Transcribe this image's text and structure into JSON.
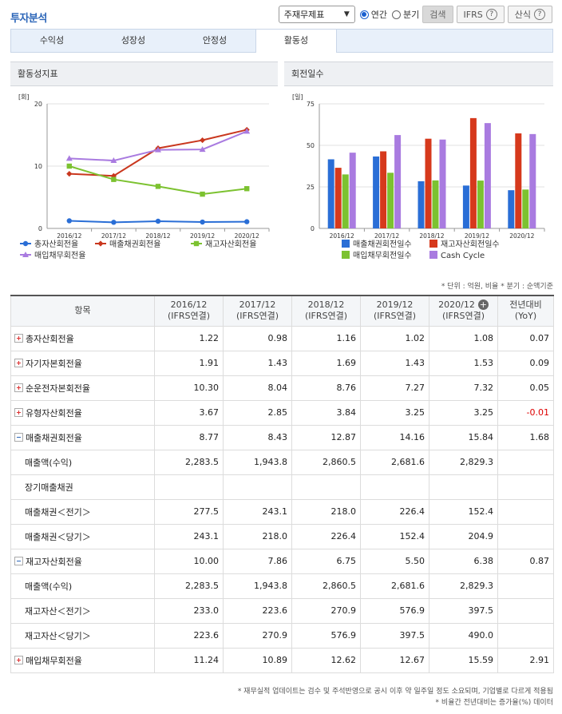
{
  "header": {
    "title": "투자분석",
    "select_value": "주재무제표",
    "radio_annual": "연간",
    "radio_quarter": "분기",
    "search_button": "검색",
    "ifrs_button": "IFRS",
    "formula_button": "산식"
  },
  "tabs": [
    "수익성",
    "성장성",
    "안정성",
    "활동성"
  ],
  "active_tab": 3,
  "chart_left": {
    "panel_title": "활동성지표",
    "chart_data": {
      "type": "line",
      "unit": "[회]",
      "categories": [
        "2016/12",
        "2017/12",
        "2018/12",
        "2019/12",
        "2020/12"
      ],
      "ylim": [
        0,
        20
      ],
      "yticks": [
        0,
        10,
        20
      ],
      "series": [
        {
          "name": "총자산회전율",
          "color": "#2a6ed6",
          "marker": "circle",
          "values": [
            1.22,
            0.98,
            1.16,
            1.02,
            1.08
          ]
        },
        {
          "name": "매출채권회전율",
          "color": "#c9371e",
          "marker": "diamond",
          "values": [
            8.77,
            8.43,
            12.87,
            14.16,
            15.84
          ]
        },
        {
          "name": "재고자산회전율",
          "color": "#7cc230",
          "marker": "square",
          "values": [
            10.0,
            7.86,
            6.75,
            5.5,
            6.38
          ]
        },
        {
          "name": "매입채무회전율",
          "color": "#a97be0",
          "marker": "triangle",
          "values": [
            11.24,
            10.89,
            12.62,
            12.67,
            15.59
          ]
        }
      ]
    }
  },
  "chart_right": {
    "panel_title": "회전일수",
    "chart_data": {
      "type": "bar",
      "unit": "[일]",
      "categories": [
        "2016/12",
        "2017/12",
        "2018/12",
        "2019/12",
        "2020/12"
      ],
      "ylim": [
        0,
        75
      ],
      "yticks": [
        0,
        25,
        50,
        75
      ],
      "series": [
        {
          "name": "매출채권회전일수",
          "color": "#2a6ed6",
          "values": [
            41.6,
            43.3,
            28.4,
            25.8,
            23.0
          ]
        },
        {
          "name": "재고자산회전일수",
          "color": "#d6391c",
          "values": [
            36.5,
            46.4,
            54.0,
            66.4,
            57.2
          ]
        },
        {
          "name": "매입채무회전일수",
          "color": "#7cc230",
          "values": [
            32.5,
            33.5,
            28.9,
            28.8,
            23.4
          ]
        },
        {
          "name": "Cash Cycle",
          "color": "#a97be0",
          "values": [
            45.6,
            56.2,
            53.5,
            63.4,
            56.8
          ]
        }
      ]
    }
  },
  "unit_note": "* 단위 : 억원, 비율   * 분기 : 순액기준",
  "table": {
    "item_header": "항목",
    "periods": [
      {
        "year": "2016/12",
        "std": "(IFRS연결)"
      },
      {
        "year": "2017/12",
        "std": "(IFRS연결)"
      },
      {
        "year": "2018/12",
        "std": "(IFRS연결)"
      },
      {
        "year": "2019/12",
        "std": "(IFRS연결)"
      },
      {
        "year": "2020/12",
        "std": "(IFRS연결)"
      }
    ],
    "yoy_header": {
      "line1": "전년대비",
      "line2": "(YoY)"
    },
    "rows": [
      {
        "label": "총자산회전율",
        "toggle": "plus",
        "values": [
          "1.22",
          "0.98",
          "1.16",
          "1.02",
          "1.08"
        ],
        "yoy": "0.07"
      },
      {
        "label": "자기자본회전율",
        "toggle": "plus",
        "values": [
          "1.91",
          "1.43",
          "1.69",
          "1.43",
          "1.53"
        ],
        "yoy": "0.09"
      },
      {
        "label": "순운전자본회전율",
        "toggle": "plus",
        "values": [
          "10.30",
          "8.04",
          "8.76",
          "7.27",
          "7.32"
        ],
        "yoy": "0.05"
      },
      {
        "label": "유형자산회전율",
        "toggle": "plus",
        "values": [
          "3.67",
          "2.85",
          "3.84",
          "3.25",
          "3.25"
        ],
        "yoy": "-0.01",
        "neg": true
      },
      {
        "label": "매출채권회전율",
        "toggle": "minus",
        "values": [
          "8.77",
          "8.43",
          "12.87",
          "14.16",
          "15.84"
        ],
        "yoy": "1.68"
      },
      {
        "label": "매출액(수익)",
        "toggle": "none",
        "values": [
          "2,283.5",
          "1,943.8",
          "2,860.5",
          "2,681.6",
          "2,829.3"
        ],
        "yoy": ""
      },
      {
        "label": "장기매출채권",
        "toggle": "none",
        "values": [
          "",
          "",
          "",
          "",
          ""
        ],
        "yoy": ""
      },
      {
        "label": "매출채권＜전기＞",
        "toggle": "none",
        "values": [
          "277.5",
          "243.1",
          "218.0",
          "226.4",
          "152.4"
        ],
        "yoy": ""
      },
      {
        "label": "매출채권＜당기＞",
        "toggle": "none",
        "values": [
          "243.1",
          "218.0",
          "226.4",
          "152.4",
          "204.9"
        ],
        "yoy": ""
      },
      {
        "label": "재고자산회전율",
        "toggle": "minus",
        "values": [
          "10.00",
          "7.86",
          "6.75",
          "5.50",
          "6.38"
        ],
        "yoy": "0.87"
      },
      {
        "label": "매출액(수익)",
        "toggle": "none",
        "values": [
          "2,283.5",
          "1,943.8",
          "2,860.5",
          "2,681.6",
          "2,829.3"
        ],
        "yoy": ""
      },
      {
        "label": "재고자산＜전기＞",
        "toggle": "none",
        "values": [
          "233.0",
          "223.6",
          "270.9",
          "576.9",
          "397.5"
        ],
        "yoy": ""
      },
      {
        "label": "재고자산＜당기＞",
        "toggle": "none",
        "values": [
          "223.6",
          "270.9",
          "576.9",
          "397.5",
          "490.0"
        ],
        "yoy": ""
      },
      {
        "label": "매입채무회전율",
        "toggle": "plus",
        "values": [
          "11.24",
          "10.89",
          "12.62",
          "12.67",
          "15.59"
        ],
        "yoy": "2.91"
      }
    ]
  },
  "footnotes": [
    "* 재무실적 업데이트는 검수 및 주석반영으로 공시 이후 약 일주일 정도 소요되며, 기업별로 다르게 적용됨",
    "* 비율간 전년대비는 증가율(%) 데이터"
  ]
}
